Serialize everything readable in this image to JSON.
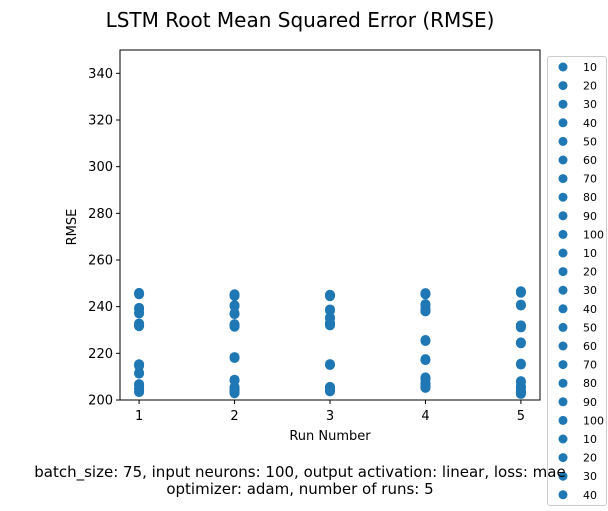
{
  "chart_data": {
    "type": "scatter",
    "title": "LSTM Root Mean Squared Error (RMSE)",
    "xlabel": "Run Number",
    "ylabel": "RMSE",
    "x_ticks": [
      "1",
      "2",
      "3",
      "4",
      "5"
    ],
    "y_ticks": [
      "200",
      "220",
      "240",
      "260",
      "280",
      "300",
      "320",
      "340"
    ],
    "xlim": [
      0.8,
      5.2
    ],
    "ylim": [
      200,
      350
    ],
    "grid": false,
    "legend_position": "right (outside plot, clipped)",
    "color": "#1f77b4",
    "x": [
      1,
      2,
      3,
      4,
      5
    ],
    "series": [
      {
        "name": "10",
        "values": [
          215.3,
          204.6,
          205.1,
          208.9,
          205.0
        ]
      },
      {
        "name": "20",
        "values": [
          232.0,
          231.6,
          232.0,
          238.0,
          231.1
        ]
      },
      {
        "name": "30",
        "values": [
          245.6,
          245.0,
          244.8,
          245.5,
          246.0
        ]
      },
      {
        "name": "40",
        "values": [
          206.8,
          202.9,
          204.9,
          205.2,
          202.8
        ]
      },
      {
        "name": "50",
        "values": [
          239.5,
          240.6,
          238.8,
          241.1,
          240.5
        ]
      },
      {
        "name": "60",
        "values": [
          203.4,
          218.4,
          215.0,
          225.7,
          224.3
        ]
      },
      {
        "name": "70",
        "values": [
          237.1,
          236.8,
          235.0,
          239.2,
          215.2
        ]
      },
      {
        "name": "80",
        "values": [
          211.3,
          208.3,
          205.6,
          209.7,
          203.6
        ]
      },
      {
        "name": "90",
        "values": [
          205.1,
          205.6,
          203.7,
          217.1,
          208.1
        ]
      },
      {
        "name": "100",
        "values": [
          232.4,
          231.8,
          232.9,
          207.3,
          231.6
        ]
      },
      {
        "name": "10",
        "values": [
          215.0,
          204.0,
          205.4,
          206.0,
          205.5
        ]
      },
      {
        "name": "20",
        "values": [
          232.0,
          232.2,
          232.4,
          238.5,
          231.4
        ]
      },
      {
        "name": "30",
        "values": [
          245.3,
          244.6,
          245.1,
          245.3,
          246.6
        ]
      },
      {
        "name": "40",
        "values": [
          206.2,
          203.5,
          204.3,
          205.7,
          203.2
        ]
      },
      {
        "name": "50",
        "values": [
          239.0,
          240.2,
          238.3,
          240.6,
          240.9
        ]
      },
      {
        "name": "60",
        "values": [
          203.8,
          218.0,
          215.4,
          225.3,
          224.7
        ]
      },
      {
        "name": "70",
        "values": [
          237.5,
          237.2,
          235.4,
          238.7,
          215.6
        ]
      },
      {
        "name": "80",
        "values": [
          211.7,
          208.7,
          205.2,
          209.3,
          204.0
        ]
      },
      {
        "name": "90",
        "values": [
          204.7,
          205.2,
          204.1,
          217.5,
          207.7
        ]
      },
      {
        "name": "100",
        "values": [
          232.8,
          231.4,
          232.5,
          206.9,
          232.0
        ]
      },
      {
        "name": "10",
        "values": [
          214.6,
          203.6,
          204.8,
          206.4,
          206.0
        ]
      },
      {
        "name": "20",
        "values": [
          231.6,
          232.5,
          232.8,
          238.1,
          231.8
        ]
      },
      {
        "name": "30",
        "values": [
          245.9,
          245.3,
          244.5,
          245.8,
          246.3
        ]
      },
      {
        "name": "40",
        "values": [
          206.5,
          203.2,
          204.6,
          205.4,
          202.6
        ]
      }
    ]
  },
  "caption": {
    "line1": "batch_size: 75, input neurons: 100, output activation: linear, loss: mae",
    "line2": "optimizer: adam, number of runs: 5"
  }
}
